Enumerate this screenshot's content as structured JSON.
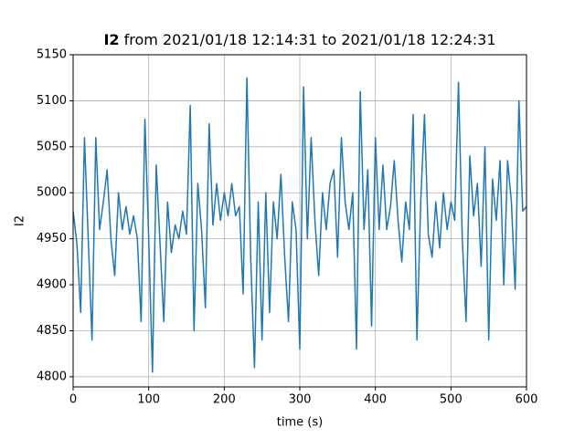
{
  "chart_data": {
    "type": "line",
    "title": {
      "name": "I2",
      "rest": "from 2021/01/18 12:14:31 to 2021/01/18 12:24:31"
    },
    "xlabel": "time (s)",
    "ylabel": "I2",
    "xlim": [
      0,
      600
    ],
    "ylim": [
      4789,
      5150
    ],
    "xticks": [
      0,
      100,
      200,
      300,
      400,
      500,
      600
    ],
    "yticks": [
      4800,
      4850,
      4900,
      4950,
      5000,
      5050,
      5100,
      5150
    ],
    "grid": true,
    "x": [
      0,
      5,
      10,
      15,
      20,
      25,
      30,
      35,
      40,
      45,
      50,
      55,
      60,
      65,
      70,
      75,
      80,
      85,
      90,
      95,
      100,
      105,
      110,
      115,
      120,
      125,
      130,
      135,
      140,
      145,
      150,
      155,
      160,
      165,
      170,
      175,
      180,
      185,
      190,
      195,
      200,
      205,
      210,
      215,
      220,
      225,
      230,
      235,
      240,
      245,
      250,
      255,
      260,
      265,
      270,
      275,
      280,
      285,
      290,
      295,
      300,
      305,
      310,
      315,
      320,
      325,
      330,
      335,
      340,
      345,
      350,
      355,
      360,
      365,
      370,
      375,
      380,
      385,
      390,
      395,
      400,
      405,
      410,
      415,
      420,
      425,
      430,
      435,
      440,
      445,
      450,
      455,
      460,
      465,
      470,
      475,
      480,
      485,
      490,
      495,
      500,
      505,
      510,
      515,
      520,
      525,
      530,
      535,
      540,
      545,
      550,
      555,
      560,
      565,
      570,
      575,
      580,
      585,
      590,
      595,
      600
    ],
    "series": [
      {
        "name": "I2",
        "color": "#1f77b4",
        "values": [
          4980,
          4945,
          4870,
          5060,
          4950,
          4840,
          5060,
          4960,
          4990,
          5025,
          4950,
          4910,
          5000,
          4960,
          4985,
          4955,
          4975,
          4950,
          4860,
          5080,
          4950,
          4805,
          5030,
          4945,
          4860,
          4990,
          4935,
          4965,
          4950,
          4980,
          4955,
          5095,
          4850,
          5010,
          4960,
          4875,
          5075,
          4965,
          5010,
          4970,
          5000,
          4975,
          5010,
          4975,
          4985,
          4890,
          5125,
          4930,
          4810,
          4990,
          4840,
          5000,
          4870,
          4990,
          4950,
          5020,
          4930,
          4860,
          4990,
          4960,
          4830,
          5115,
          4950,
          5060,
          4970,
          4910,
          5000,
          4960,
          5010,
          5025,
          4930,
          5060,
          4990,
          4960,
          5000,
          4830,
          5110,
          4960,
          5025,
          4855,
          5060,
          4960,
          5030,
          4960,
          4985,
          5035,
          4970,
          4925,
          4990,
          4960,
          5085,
          4840,
          4990,
          5085,
          4955,
          4930,
          4990,
          4940,
          5000,
          4960,
          4990,
          4970,
          5120,
          4950,
          4860,
          5040,
          4975,
          5010,
          4920,
          5050,
          4840,
          5015,
          4970,
          5035,
          4900,
          5035,
          4990,
          4895,
          5100,
          4980,
          4985
        ]
      }
    ]
  }
}
